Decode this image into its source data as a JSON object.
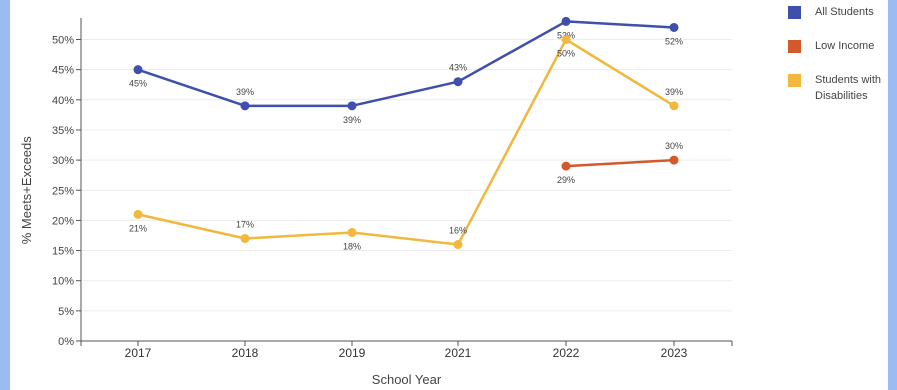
{
  "chart_data": {
    "type": "line",
    "categories": [
      "2017",
      "2018",
      "2019",
      "2021",
      "2022",
      "2023"
    ],
    "ylabel": "% Meets+Exceeds",
    "xlabel": "School Year",
    "ylim": [
      0,
      50
    ],
    "yticks": [
      "0%",
      "5%",
      "10%",
      "15%",
      "20%",
      "25%",
      "30%",
      "35%",
      "40%",
      "45%",
      "50%"
    ],
    "legend_position": "top-right",
    "series": [
      {
        "name": "All Students",
        "color": "#3f4fae",
        "values": [
          45,
          39,
          39,
          43,
          53,
          52
        ],
        "labels": [
          "45%",
          "39%",
          "39%",
          "43%",
          "53%",
          "52%"
        ],
        "label_pos": [
          "below",
          "above",
          "below",
          "above",
          "below",
          "below"
        ]
      },
      {
        "name": "Low Income",
        "color": "#d4592a",
        "values": [
          null,
          null,
          null,
          null,
          29,
          30
        ],
        "labels": [
          null,
          null,
          null,
          null,
          "29%",
          "30%"
        ],
        "label_pos": [
          null,
          null,
          null,
          null,
          "below",
          "above"
        ]
      },
      {
        "name": "Students with Disabilities",
        "color": "#f2b73d",
        "values": [
          21,
          17,
          18,
          16,
          50,
          39
        ],
        "labels": [
          "21%",
          "17%",
          "18%",
          "16%",
          "50%",
          "39%"
        ],
        "label_pos": [
          "below",
          "above",
          "below",
          "above",
          "below",
          "above"
        ]
      }
    ]
  }
}
